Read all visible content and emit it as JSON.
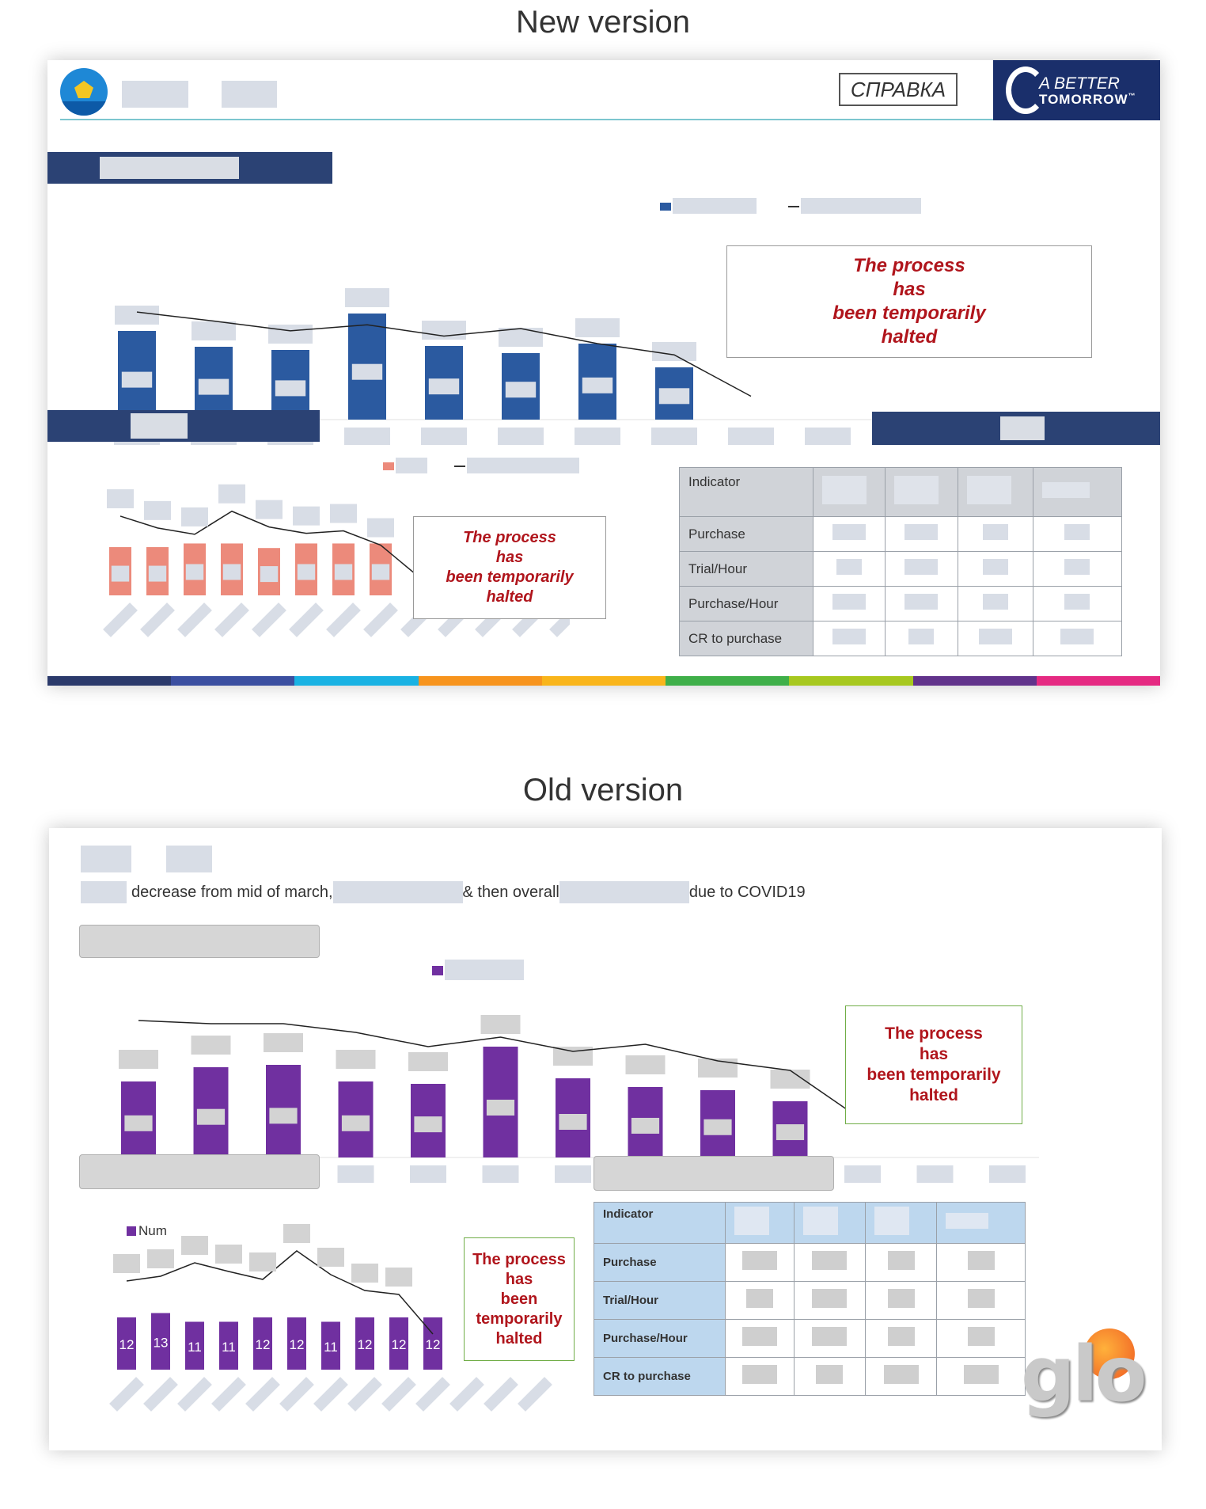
{
  "new_title": "New version",
  "old_title": "Old version",
  "new": {
    "brand": {
      "spravka": "СПРАВКА",
      "abt_line1": "A BETTER",
      "abt_line2": "TOMORROW",
      "abt_tm": "™"
    },
    "halted_text": [
      "The process",
      "has",
      "been temporarily",
      "halted"
    ],
    "table": {
      "header": "Indicator",
      "rows": [
        "Purchase",
        "Trial/Hour",
        "Purchase/Hour",
        "CR to purchase"
      ]
    },
    "stripe_colors": [
      "#2b3a6b",
      "#3b4fa0",
      "#19b2e3",
      "#f7941d",
      "#f9b51b",
      "#3faf49",
      "#a7c81f",
      "#61338b",
      "#e52a82"
    ]
  },
  "old": {
    "subtitle_parts": [
      "decrease from mid of march, ",
      "& then overall ",
      "due to COVID19"
    ],
    "halted_text_top": [
      "The process",
      "has",
      "been temporarily",
      "halted"
    ],
    "halted_text_bottom": [
      "The process",
      "has",
      "been",
      "temporarily",
      "halted"
    ],
    "legend_num": "Num",
    "table": {
      "header": "Indicator",
      "rows": [
        "Purchase",
        "Trial/Hour",
        "Purchase/Hour",
        "CR to purchase"
      ]
    },
    "brand_logo": "glo"
  },
  "chart_data": [
    {
      "type": "bar",
      "series": [
        {
          "color": "#2b5aa0"
        }
      ],
      "values": [
        112,
        92,
        88,
        134,
        93,
        84,
        96,
        66
      ],
      "line_values": [
        122,
        110,
        97,
        105,
        90,
        100,
        80,
        65,
        10
      ]
    },
    {
      "type": "bar",
      "series": [
        {
          "color": "#ec8a7b"
        }
      ],
      "values": [
        53,
        53,
        57,
        57,
        52,
        57,
        57,
        57
      ],
      "line_values": [
        142,
        118,
        105,
        152,
        120,
        107,
        112,
        83,
        20
      ]
    },
    {
      "type": "bar",
      "series": [
        {
          "color": "#7030a0"
        }
      ],
      "values": [
        96,
        114,
        117,
        96,
        93,
        140,
        100,
        89,
        85,
        71
      ],
      "line_values": [
        133,
        129,
        129,
        118,
        100,
        112,
        94,
        103,
        82,
        70,
        7
      ]
    },
    {
      "type": "bar",
      "series": [
        {
          "name": "Num",
          "color": "#7030a0"
        }
      ],
      "categories_count": 10,
      "values": [
        12,
        13,
        11,
        11,
        12,
        12,
        11,
        12,
        12,
        12
      ],
      "line_values": [
        72,
        78,
        95,
        84,
        74,
        110,
        80,
        60,
        55,
        5
      ]
    }
  ]
}
